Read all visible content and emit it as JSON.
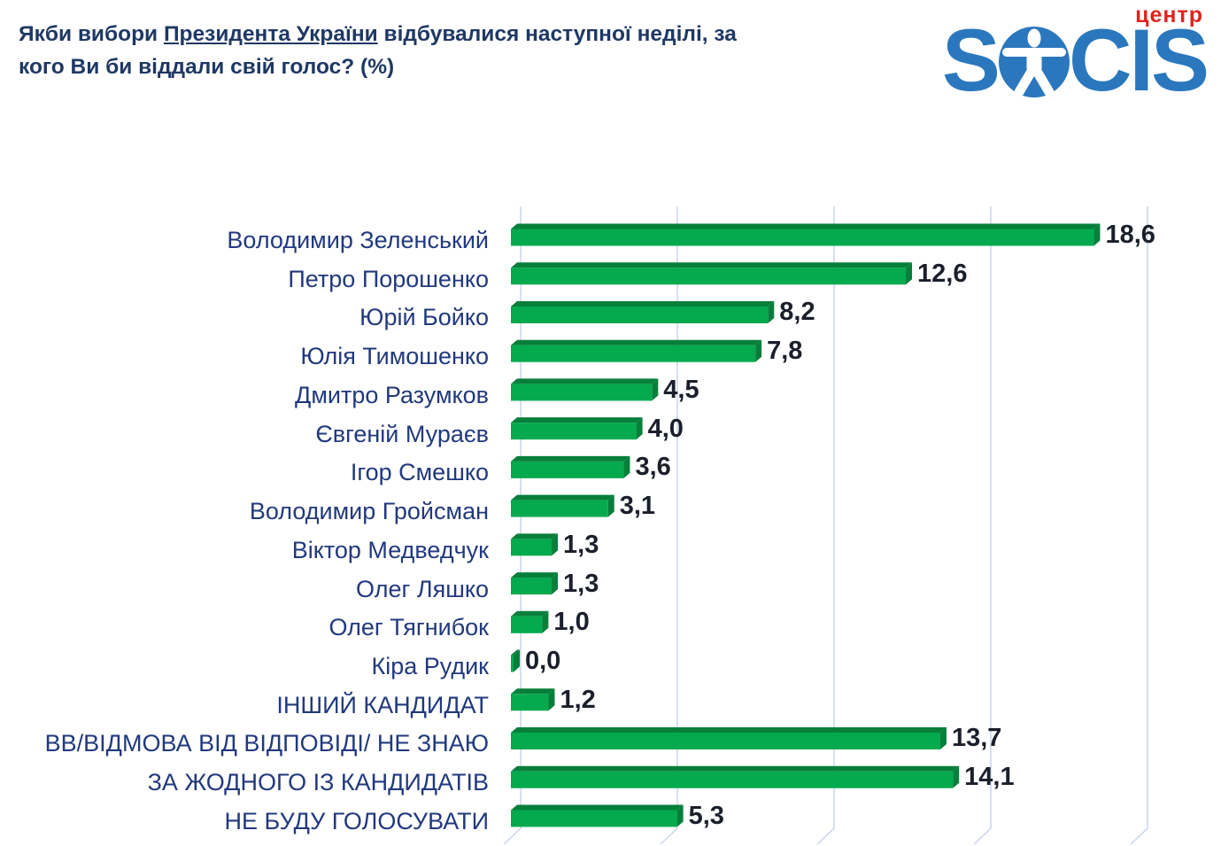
{
  "title": {
    "line1_prefix": "Якби вибори ",
    "line1_underlined": "Президента України",
    "line1_suffix": " відбувалися наступної неділі, за",
    "line2": "кого Ви би віддали свій голос? (%)"
  },
  "logo": {
    "tagline": "центр",
    "brand_prefix": "S",
    "brand_suffix": "CIS",
    "brand_color": "#2b77bd",
    "tagline_color": "#e2231c"
  },
  "chart_data": {
    "type": "bar",
    "orientation": "horizontal",
    "title": "Якби вибори Президента України відбувалися наступної неділі, за кого Ви би віддали свій голос? (%)",
    "categories": [
      "Володимир Зеленський",
      "Петро Порошенко",
      "Юрій Бойко",
      "Юлія Тимошенко",
      "Дмитро Разумков",
      "Євгеній Мураєв",
      "Ігор Смешко",
      "Володимир Гройсман",
      "Віктор Медведчук",
      "Олег Ляшко",
      "Олег Тягнибок",
      "Кіра Рудик",
      "ІНШИЙ КАНДИДАТ",
      "ВВ/ВІДМОВА ВІД ВІДПОВІДІ/ НЕ ЗНАЮ",
      "ЗА ЖОДНОГО ІЗ КАНДИДАТІВ",
      "НЕ БУДУ ГОЛОСУВАТИ"
    ],
    "values": [
      18.6,
      12.6,
      8.2,
      7.8,
      4.5,
      4.0,
      3.6,
      3.1,
      1.3,
      1.3,
      1.0,
      0.0,
      1.2,
      13.7,
      14.1,
      5.3
    ],
    "value_labels": [
      "18,6",
      "12,6",
      "8,2",
      "7,8",
      "4,5",
      "4,0",
      "3,6",
      "3,1",
      "1,3",
      "1,3",
      "1,0",
      "0,0",
      "1,2",
      "13,7",
      "14,1",
      "5,3"
    ],
    "xlim": [
      0,
      20
    ],
    "gridline_step": 5,
    "grid": true,
    "legend": false,
    "effect": "3d-bars",
    "bar_color": "#05a94e",
    "bar_edge_color": "#077f3a",
    "grid_color": "#c9d5ec",
    "category_color": "#21397e",
    "value_color": "#1a1f2b"
  }
}
